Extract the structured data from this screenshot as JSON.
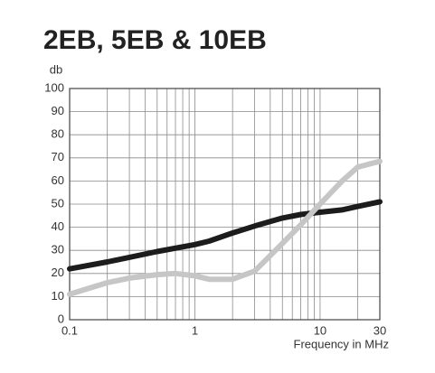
{
  "chart_data": {
    "type": "line",
    "title": "2EB, 5EB & 10EB",
    "y_label": "db",
    "x_label": "Frequency in MHz",
    "log_x": true,
    "grid": true,
    "xlim": [
      0.1,
      30
    ],
    "xticks": [
      0.1,
      1,
      10,
      30
    ],
    "x_minor_grid": [
      0.2,
      0.3,
      0.4,
      0.5,
      0.6,
      0.7,
      0.8,
      0.9,
      2,
      3,
      4,
      5,
      6,
      7,
      8,
      9,
      20
    ],
    "ylim": [
      0,
      100
    ],
    "yticks": [
      0,
      10,
      20,
      30,
      40,
      50,
      60,
      70,
      80,
      90,
      100
    ],
    "series": [
      {
        "color": "#1c1c1c",
        "x": [
          0.1,
          0.2,
          0.5,
          1,
          1.3,
          2,
          3,
          5,
          7,
          10,
          15,
          20,
          30
        ],
        "values": [
          22,
          25,
          29.5,
          32.5,
          34,
          37.5,
          40.5,
          44,
          45.5,
          46.5,
          47.5,
          49,
          51
        ]
      },
      {
        "color": "#c6c6c6",
        "x": [
          0.1,
          0.15,
          0.2,
          0.3,
          0.5,
          0.7,
          1,
          1.3,
          2,
          3,
          5,
          7,
          10,
          15,
          20,
          30
        ],
        "values": [
          11,
          14,
          16,
          18,
          19.5,
          20,
          19,
          17.5,
          17.5,
          21,
          33,
          41,
          50,
          60,
          66,
          68.5
        ]
      }
    ]
  }
}
